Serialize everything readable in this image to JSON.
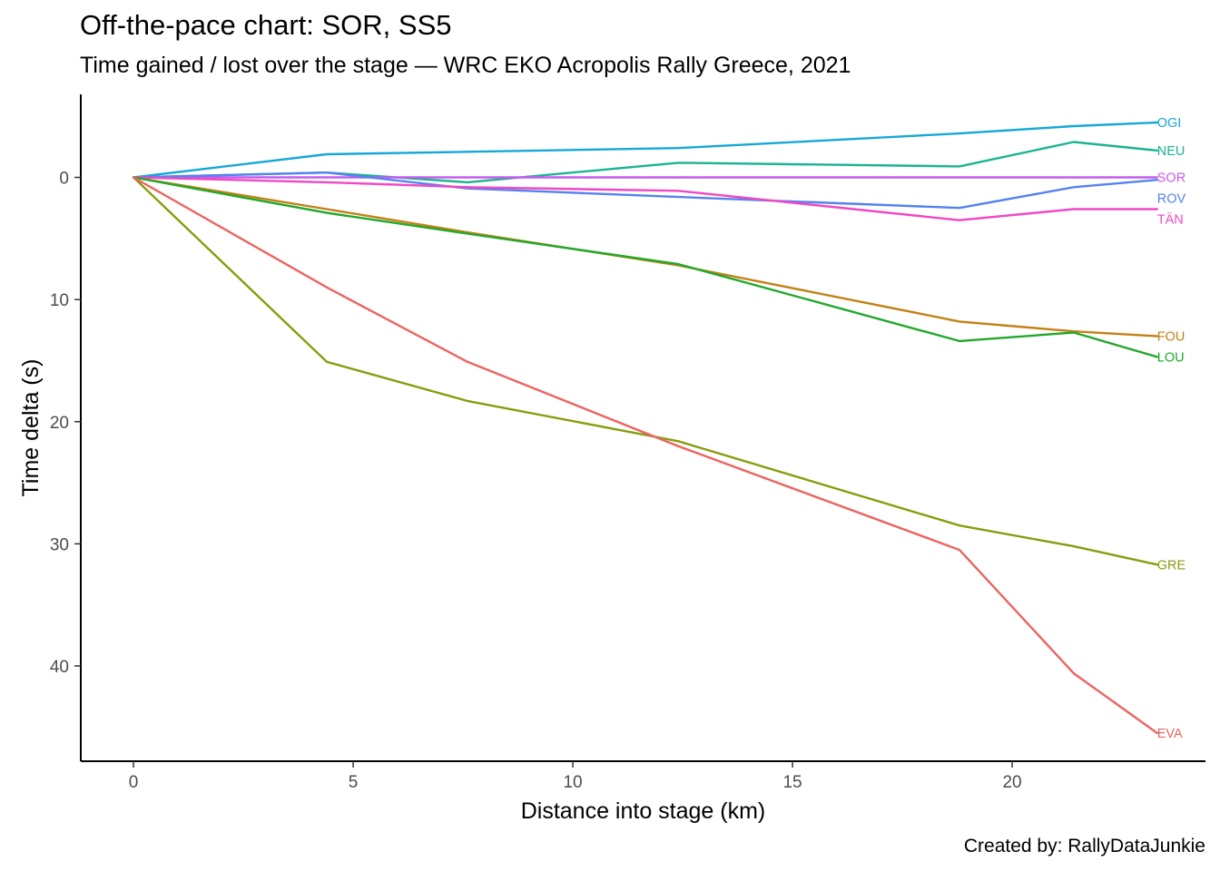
{
  "header": {
    "title": "Off-the-pace chart: SOR, SS5",
    "subtitle": "Time gained / lost over the stage — WRC EKO Acropolis Rally Greece, 2021"
  },
  "caption": "Created by: RallyDataJunkie",
  "chart_data": {
    "type": "line",
    "title": "Off-the-pace chart: SOR, SS5",
    "subtitle": "Time gained / lost over the stage — WRC EKO Acropolis Rally Greece, 2021",
    "xlabel": "Distance into stage (km)",
    "ylabel": "Time delta (s)",
    "xlim": [
      -1.2,
      24.4
    ],
    "ylim": [
      -6.8,
      47.8
    ],
    "y_reversed": true,
    "x_ticks": [
      0,
      5,
      10,
      15,
      20
    ],
    "y_ticks": [
      0,
      10,
      20,
      30,
      40
    ],
    "grid": false,
    "legend": "none (labels at line ends)",
    "x": [
      0,
      4.4,
      7.6,
      12.4,
      18.8,
      21.4,
      23.3
    ],
    "series": [
      {
        "name": "OGI",
        "color": "#16A8D8",
        "values": [
          0,
          -1.9,
          -2.1,
          -2.4,
          -3.6,
          -4.2,
          -4.5
        ]
      },
      {
        "name": "NEU",
        "color": "#1BB391",
        "values": [
          0,
          -0.4,
          0.4,
          -1.2,
          -0.9,
          -2.9,
          -2.2
        ]
      },
      {
        "name": "SOR",
        "color": "#C65BEF",
        "values": [
          0,
          0,
          0,
          0,
          0,
          0,
          0
        ]
      },
      {
        "name": "ROV",
        "color": "#5483F0",
        "values": [
          0,
          -0.4,
          0.9,
          1.6,
          2.5,
          0.8,
          0.2
        ]
      },
      {
        "name": "TÄN",
        "color": "#F148C3",
        "values": [
          0,
          0.4,
          0.8,
          1.1,
          3.5,
          2.6,
          2.6
        ]
      },
      {
        "name": "FOU",
        "color": "#C38014",
        "values": [
          0,
          2.6,
          4.5,
          7.2,
          11.8,
          12.6,
          13.0
        ]
      },
      {
        "name": "LOU",
        "color": "#22A82A",
        "values": [
          0,
          2.9,
          4.6,
          7.1,
          13.4,
          12.7,
          14.7
        ]
      },
      {
        "name": "GRE",
        "color": "#8A9C0E",
        "values": [
          0,
          15.1,
          18.3,
          21.6,
          28.5,
          30.2,
          31.7
        ]
      },
      {
        "name": "EVA",
        "color": "#EC6460",
        "values": [
          0,
          9.0,
          15.1,
          22.0,
          30.5,
          40.6,
          45.5
        ]
      }
    ]
  }
}
